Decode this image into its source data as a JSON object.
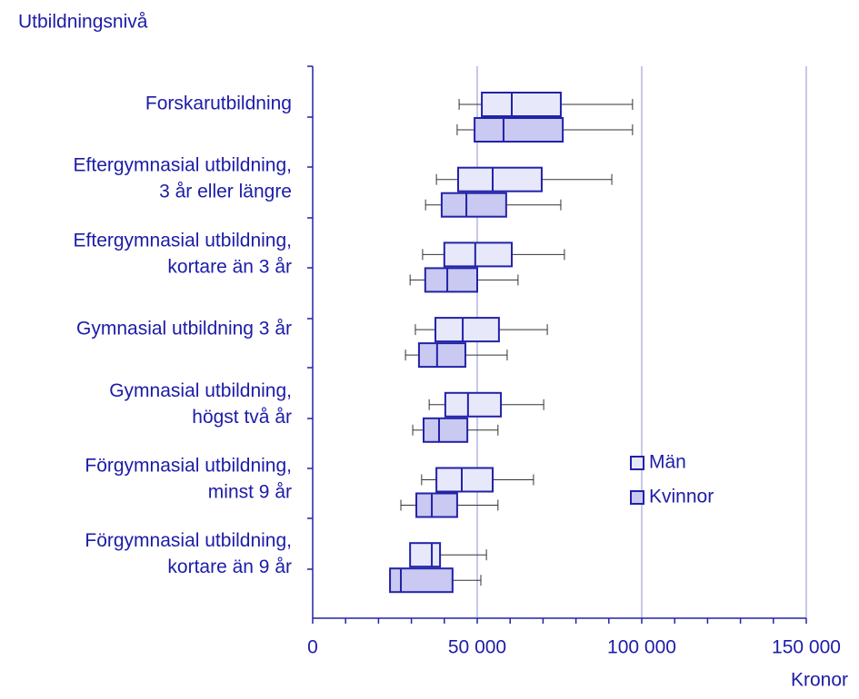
{
  "chart_data": {
    "type": "boxplot",
    "orientation": "horizontal",
    "y_axis_title": "Utbildningsnivå",
    "x_axis_title": "Kronor",
    "categories": [
      [
        "Forskarutbildning"
      ],
      [
        "Eftergymnasial utbildning,",
        "3 år eller längre"
      ],
      [
        "Eftergymnasial utbildning,",
        "kortare än 3 år"
      ],
      [
        "Gymnasial utbildning 3 år"
      ],
      [
        "Gymnasial utbildning,",
        "högst två år"
      ],
      [
        "Förgymnasial utbildning,",
        "minst 9 år"
      ],
      [
        "Förgymnasial utbildning,",
        "kortare än 9 år"
      ]
    ],
    "series": [
      {
        "name": "Män",
        "color": "#e8e8fb",
        "low": [
          44500,
          37600,
          33400,
          31200,
          35400,
          33100,
          29600
        ],
        "q1": [
          51400,
          44200,
          40000,
          37300,
          40300,
          37600,
          29600
        ],
        "median": [
          60500,
          54700,
          49400,
          45600,
          47200,
          45300,
          36200
        ],
        "q3": [
          75400,
          69600,
          60500,
          56600,
          57200,
          54700,
          38700
        ],
        "high": [
          97200,
          90900,
          76500,
          71300,
          70200,
          67100,
          52800
        ]
      },
      {
        "name": "Kvinnor",
        "color": "#c9c9f1",
        "low": [
          43900,
          34300,
          29600,
          28200,
          30400,
          26800,
          23500
        ],
        "q1": [
          49200,
          39200,
          34200,
          32300,
          33700,
          31500,
          23500
        ],
        "median": [
          58000,
          46700,
          40900,
          37800,
          38400,
          36200,
          26800
        ],
        "q3": [
          76000,
          58800,
          50000,
          46400,
          47000,
          43900,
          42500
        ],
        "high": [
          97200,
          75400,
          62400,
          59100,
          56300,
          56300,
          51100
        ]
      }
    ],
    "xlim": [
      0,
      150000
    ],
    "xticks": [
      {
        "value": 0,
        "label": "0"
      },
      {
        "value": 50000,
        "label": "50 000"
      },
      {
        "value": 100000,
        "label": "100 000"
      },
      {
        "value": 150000,
        "label": "150 000"
      }
    ],
    "xminorticks": [
      10000,
      20000,
      30000,
      40000,
      60000,
      70000,
      80000,
      90000,
      110000,
      120000,
      130000,
      140000
    ],
    "grid": true,
    "edge_color": "#2222a8",
    "grid_color": "#c8c8e8"
  }
}
